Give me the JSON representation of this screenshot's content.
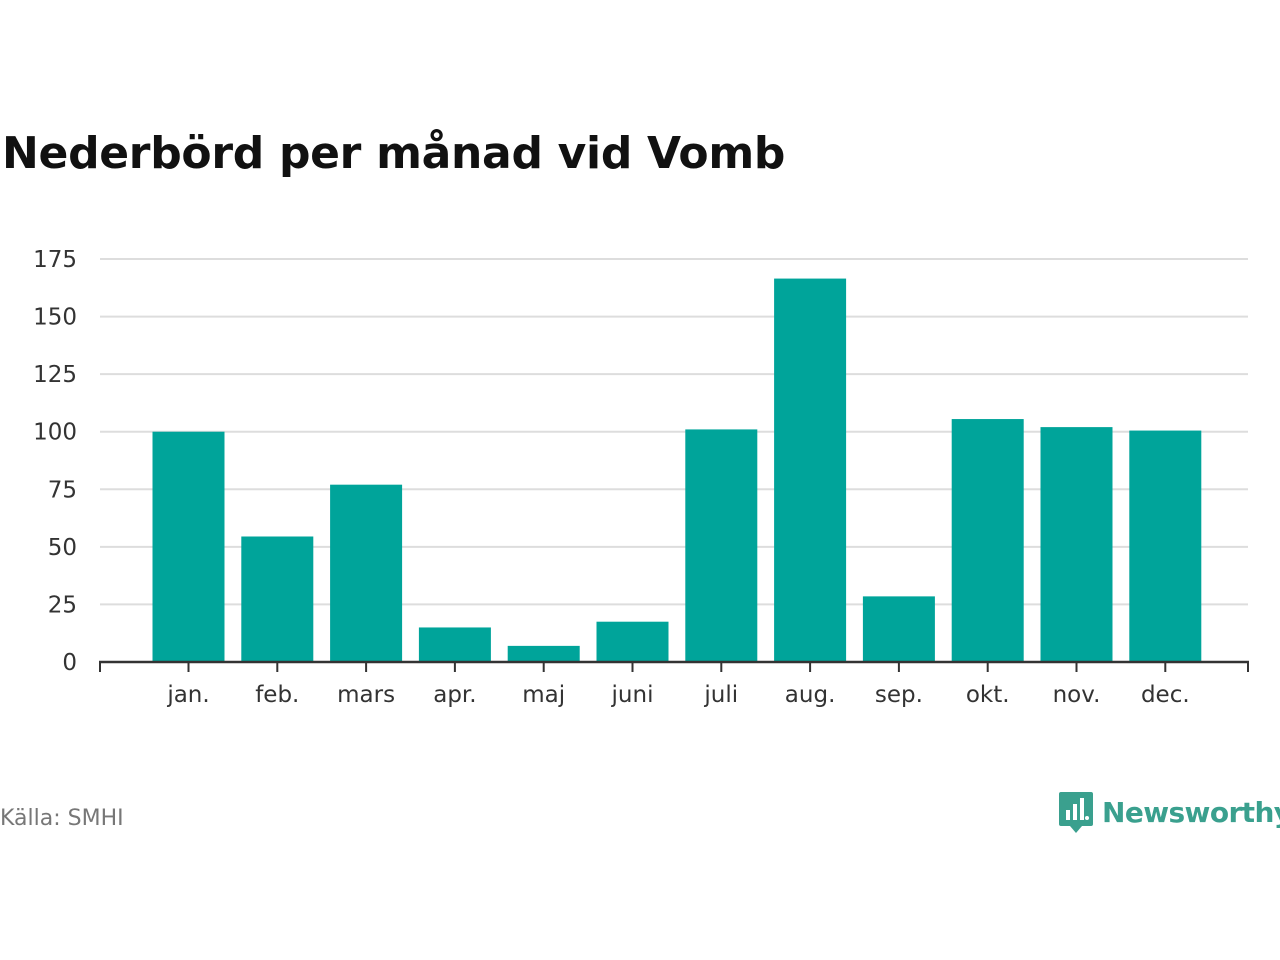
{
  "title": "Nederbörd per månad vid Vomb",
  "source": "Källa: SMHI",
  "logo": {
    "text": "Newsworthy",
    "icon": "newsworthy-chart-bubble-icon",
    "color": "#3aa08e"
  },
  "colors": {
    "bar": "#00a49a",
    "grid": "#dddddd",
    "axis": "#333333"
  },
  "chart_data": {
    "type": "bar",
    "title": "Nederbörd per månad vid Vomb",
    "xlabel": "",
    "ylabel": "",
    "categories": [
      "jan.",
      "feb.",
      "mars",
      "apr.",
      "maj",
      "juni",
      "juli",
      "aug.",
      "sep.",
      "okt.",
      "nov.",
      "dec."
    ],
    "values": [
      100,
      54.5,
      77,
      15,
      7,
      17.5,
      101,
      166.5,
      28.5,
      105.5,
      102,
      100.5
    ],
    "yticks": [
      0,
      25,
      50,
      75,
      100,
      125,
      150,
      175
    ],
    "ylim": [
      0,
      175
    ],
    "grid": true,
    "legend": "none"
  }
}
